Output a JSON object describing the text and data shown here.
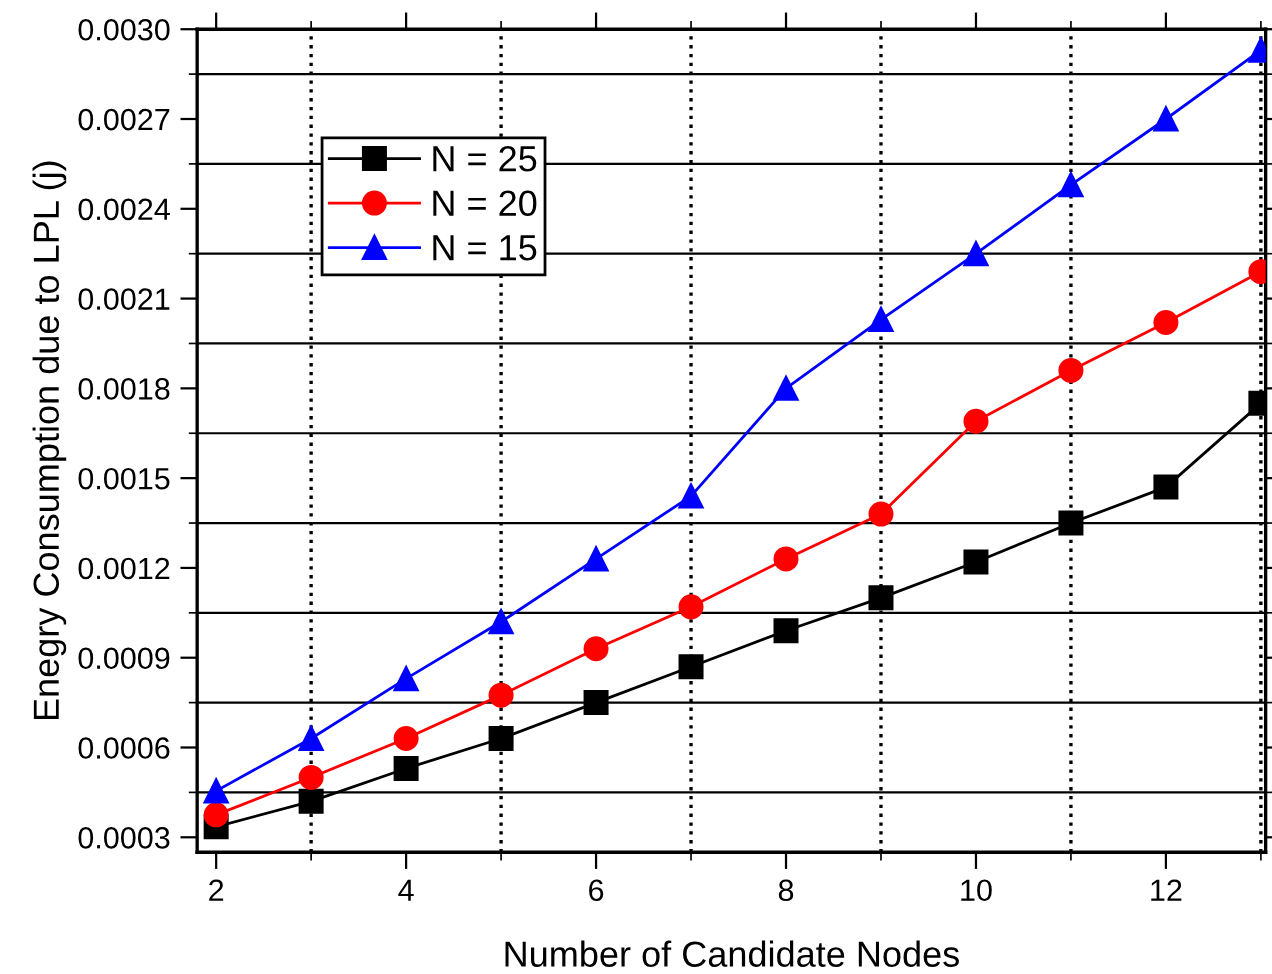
{
  "chart_data": {
    "type": "line",
    "xlabel": "Number of Candidate Nodes",
    "ylabel": "Enegry Consumption due to LPL (j)",
    "x": [
      2,
      3,
      4,
      5,
      6,
      7,
      8,
      9,
      10,
      11,
      12,
      13
    ],
    "series": [
      {
        "name": "N = 25",
        "color": "#000000",
        "marker": "square",
        "values": [
          0.000335,
          0.00042,
          0.00053,
          0.00063,
          0.00075,
          0.00087,
          0.00099,
          0.0011,
          0.00122,
          0.00135,
          0.00147,
          0.00175
        ]
      },
      {
        "name": "N = 20",
        "color": "#ff0000",
        "marker": "circle",
        "values": [
          0.000375,
          0.0005,
          0.00063,
          0.000775,
          0.00093,
          0.00107,
          0.00123,
          0.00138,
          0.00169,
          0.00186,
          0.00202,
          0.00219
        ]
      },
      {
        "name": "N = 15",
        "color": "#0000ff",
        "marker": "triangle",
        "values": [
          0.000455,
          0.00063,
          0.00083,
          0.00102,
          0.00123,
          0.00144,
          0.0018,
          0.00203,
          0.00225,
          0.00248,
          0.0027,
          0.00293
        ]
      }
    ],
    "xlim": [
      1.8,
      13.05
    ],
    "xticks": [
      2,
      4,
      6,
      8,
      10,
      12
    ],
    "ylim": [
      0.00025,
      0.003
    ],
    "yticks": [
      {
        "value": 0.0003,
        "label": "0.0003"
      },
      {
        "value": 0.0006,
        "label": "0.0006"
      },
      {
        "value": 0.0009,
        "label": "0.0009"
      },
      {
        "value": 0.0012,
        "label": "0.0012"
      },
      {
        "value": 0.0015,
        "label": "0.0015"
      },
      {
        "value": 0.0018,
        "label": "0.0018"
      },
      {
        "value": 0.0021,
        "label": "0.0021"
      },
      {
        "value": 0.0024,
        "label": "0.0024"
      },
      {
        "value": 0.0027,
        "label": "0.0027"
      },
      {
        "value": 0.003,
        "label": "0.0030"
      }
    ],
    "grid": true,
    "legend": "top left",
    "line_style": "solid"
  }
}
